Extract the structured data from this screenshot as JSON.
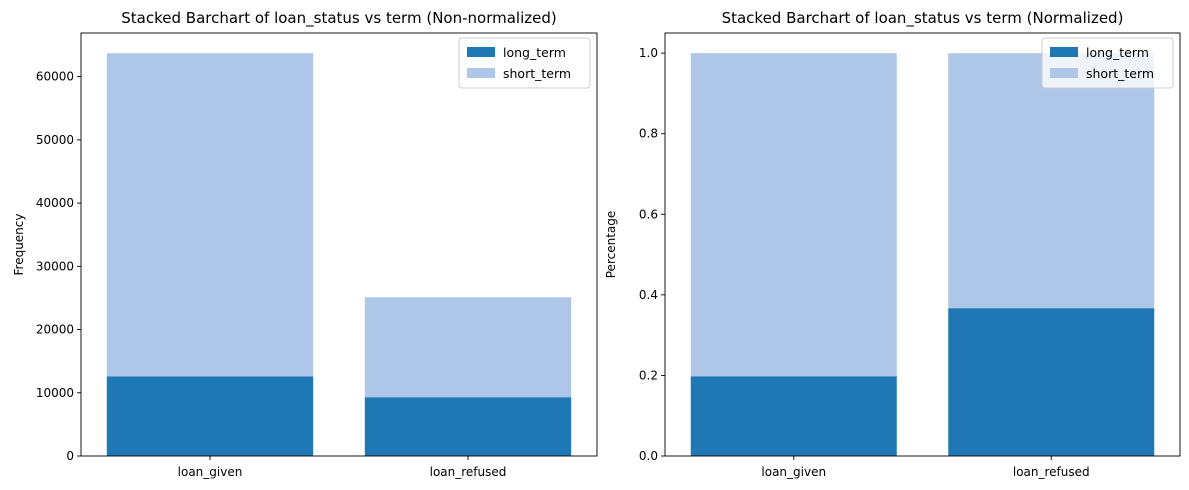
{
  "chart_data": [
    {
      "type": "bar",
      "stacked": true,
      "title": "Stacked Barchart of loan_status vs term (Non-normalized)",
      "xlabel": "",
      "ylabel": "Frequency",
      "categories": [
        "loan_given",
        "loan_refused"
      ],
      "series": [
        {
          "name": "long_term",
          "values": [
            12600,
            9300
          ],
          "color": "#1f77b4"
        },
        {
          "name": "short_term",
          "values": [
            51100,
            15800
          ],
          "color": "#aec7e8"
        }
      ],
      "ylim": [
        0,
        66900
      ],
      "yticks": [
        0,
        10000,
        20000,
        30000,
        40000,
        50000,
        60000
      ],
      "grid": false,
      "legend": "top-right"
    },
    {
      "type": "bar",
      "stacked": true,
      "title": "Stacked Barchart of loan_status vs term (Normalized)",
      "xlabel": "",
      "ylabel": "Percentage",
      "categories": [
        "loan_given",
        "loan_refused"
      ],
      "series": [
        {
          "name": "long_term",
          "values": [
            0.198,
            0.367
          ],
          "color": "#1f77b4"
        },
        {
          "name": "short_term",
          "values": [
            0.802,
            0.633
          ],
          "color": "#aec7e8"
        }
      ],
      "ylim": [
        0,
        1.05
      ],
      "yticks": [
        0.0,
        0.2,
        0.4,
        0.6,
        0.8,
        1.0
      ],
      "ytick_format": "1",
      "grid": false,
      "legend": "top-right"
    }
  ]
}
